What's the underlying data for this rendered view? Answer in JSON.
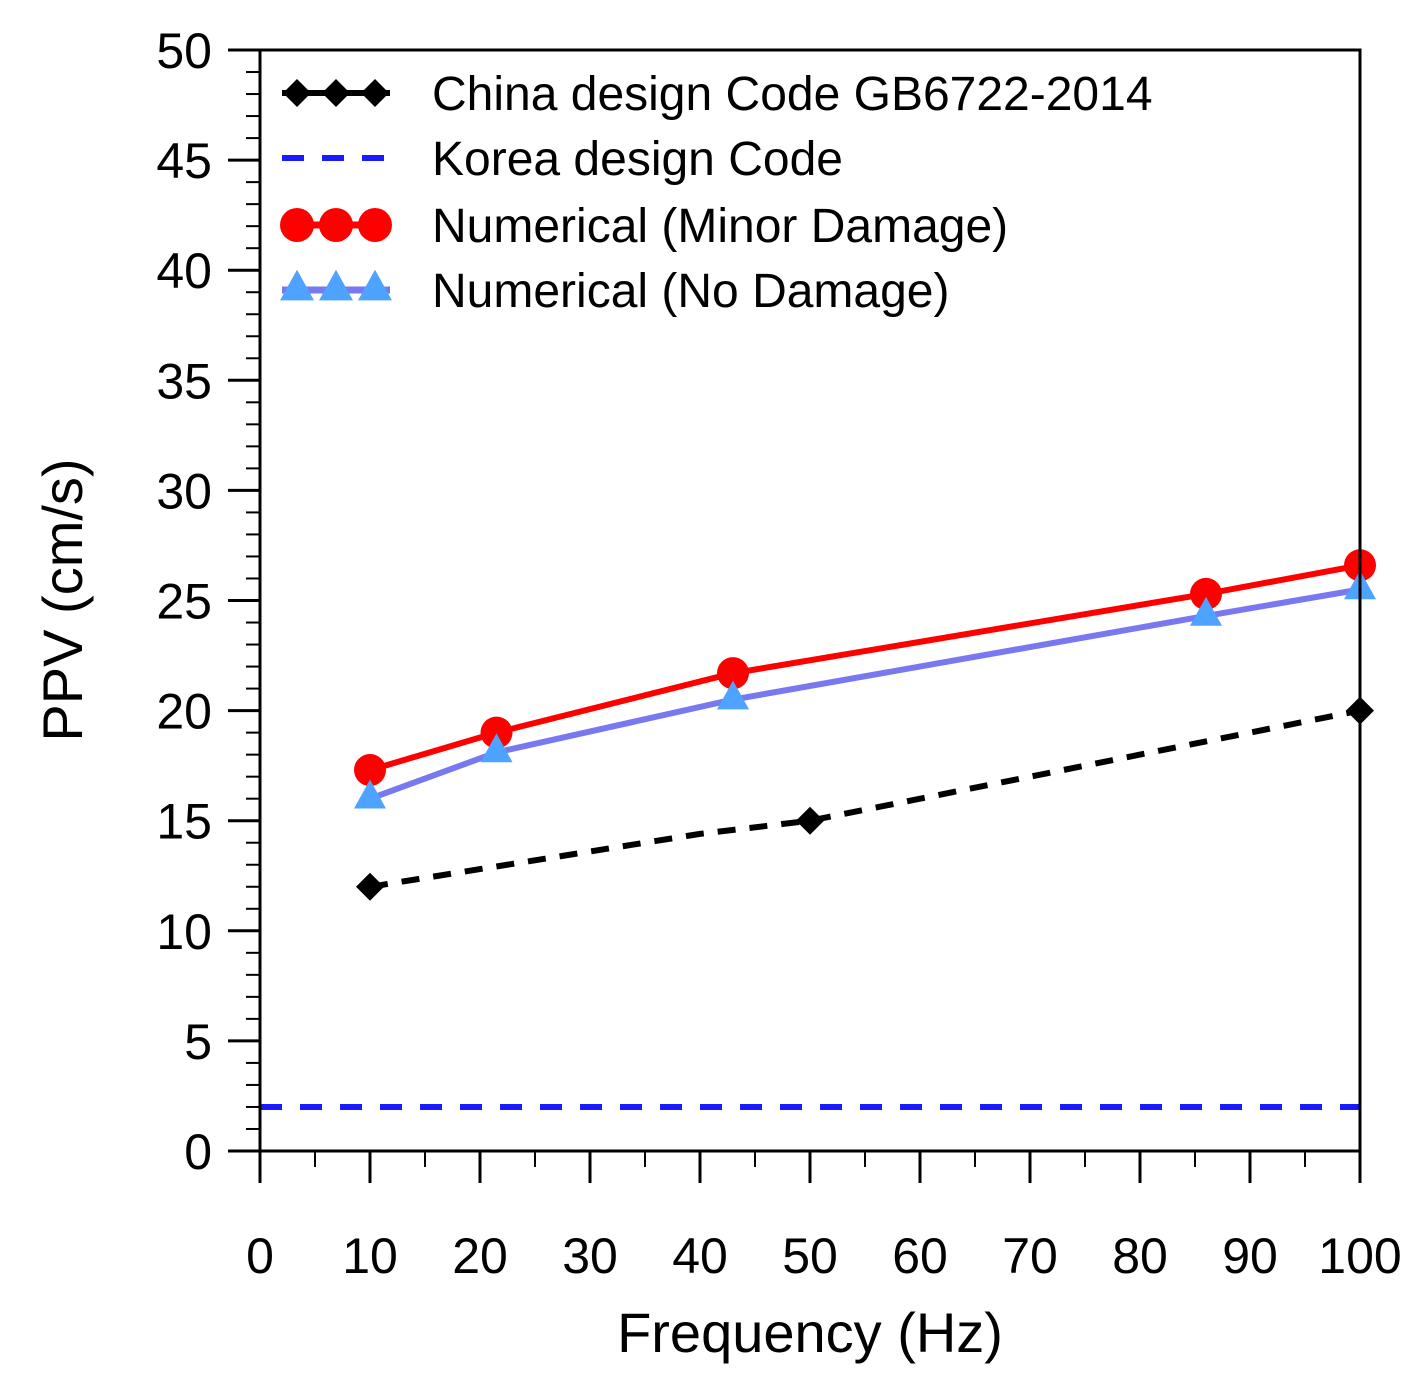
{
  "chart_data": {
    "type": "line",
    "title": "",
    "xlabel": "Frequency (Hz)",
    "ylabel": "PPV (cm/s)",
    "xlim": [
      0,
      100
    ],
    "ylim": [
      0,
      50
    ],
    "x_ticks": [
      0,
      10,
      20,
      30,
      40,
      50,
      60,
      70,
      80,
      90,
      100
    ],
    "x_tick_labels": [
      "0",
      "10",
      "20",
      "30",
      "40",
      "50",
      "60",
      "70",
      "80",
      "90",
      "100"
    ],
    "y_ticks": [
      0,
      5,
      10,
      15,
      20,
      25,
      30,
      35,
      40,
      45,
      50
    ],
    "y_tick_labels": [
      "0",
      "5",
      "10",
      "15",
      "20",
      "25",
      "30",
      "35",
      "40",
      "45",
      "50"
    ],
    "grid": false,
    "legend_position": "top-left",
    "series": [
      {
        "name": "China design Code GB6722-2014",
        "color": "#000000",
        "line_style": "dashed",
        "marker": "diamond",
        "marker_x": [
          10,
          50,
          100
        ],
        "marker_y": [
          12,
          15,
          20
        ],
        "line_x": [
          10,
          20,
          30,
          40,
          50,
          60,
          70,
          80,
          90,
          100
        ],
        "line_y": [
          12.0,
          12.8,
          13.6,
          14.4,
          15.0,
          16.0,
          17.0,
          18.0,
          19.0,
          20.0
        ]
      },
      {
        "name": "Korea design Code",
        "color": "#1a1aff",
        "line_style": "dashed",
        "marker": "none",
        "x": [
          0,
          100
        ],
        "y": [
          2,
          2
        ]
      },
      {
        "name": "Numerical (Minor Damage)",
        "color": "#ff0000",
        "line_style": "solid",
        "marker": "circle",
        "x": [
          10,
          21.5,
          43,
          86,
          100
        ],
        "y": [
          17.3,
          19.0,
          21.7,
          25.3,
          26.6
        ]
      },
      {
        "name": "Numerical (No Damage)",
        "color": "#7878f0",
        "marker_color": "#4da3ff",
        "line_style": "solid",
        "marker": "triangle",
        "x": [
          10,
          21.5,
          43,
          86,
          100
        ],
        "y": [
          16.0,
          18.1,
          20.5,
          24.3,
          25.5
        ]
      }
    ]
  }
}
